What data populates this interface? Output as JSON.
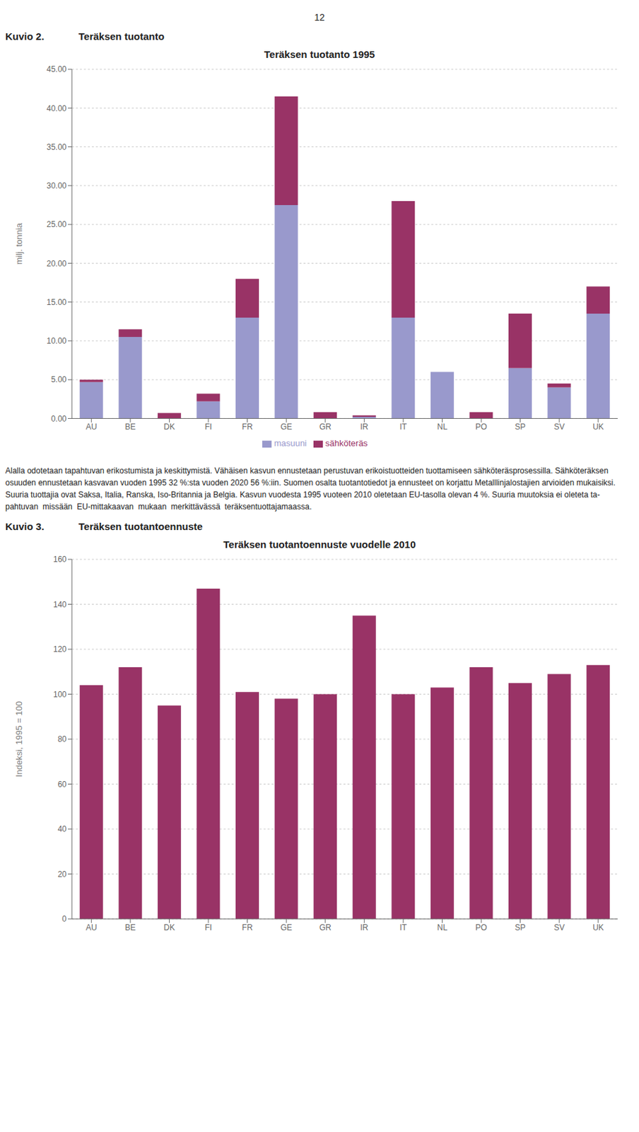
{
  "page_number": "12",
  "text": [
    "Alalla odotetaan tapahtuvan erikostumista ja keskittymistä. Vähäisen kasvun ennustetaan perustuvan erikoistuotteiden tuottamiseen sähköteräsprosessilla. Sähköteräksen",
    "osuuden ennustetaan kasvavan vuoden 1995 32 %:sta vuoden 2020 56 %:iin. Suomen osalta tuotantotiedot ja ennusteet on korjattu Metalllinjalostajien arvioiden mukaisiksi.",
    "Suuria tuottajia ovat Saksa, Italia, Ranska, Iso-Britannia ja Belgia. Kasvun vuodesta 1995 vuoteen 2010 oletetaan EU-tasolla olevan 4 %. Suuria muutoksia ei oleteta ta-",
    "pahtuvan  missään  EU-mittakaavan  mukaan  merkittävässä  teräksentuottajamaassa."
  ],
  "chart_data": [
    {
      "type": "bar",
      "annotations": [
        "Kuvio 2.",
        "Teräksen tuotanto"
      ],
      "title": "Teräksen tuotanto 1995",
      "y_label": "milj. tonnia",
      "categories": [
        "AU",
        "BE",
        "DK",
        "FI",
        "FR",
        "GE",
        "GR",
        "IR",
        "IT",
        "NL",
        "PO",
        "SP",
        "SV",
        "UK"
      ],
      "series": [
        {
          "name": "masuuni",
          "color": "#9999CC",
          "values": [
            4.7,
            10.5,
            0.0,
            2.2,
            13.0,
            27.5,
            0.0,
            0.2,
            13.0,
            6.0,
            0.0,
            6.5,
            4.0,
            13.5
          ]
        },
        {
          "name": "sähköteräs",
          "color": "#993366",
          "values": [
            0.3,
            1.0,
            0.7,
            1.0,
            5.0,
            14.0,
            0.8,
            0.2,
            15.0,
            0.0,
            0.8,
            7.0,
            0.5,
            3.5
          ]
        }
      ],
      "stacked": true,
      "ylim": [
        0,
        45
      ],
      "yticks": [
        {
          "value": 0,
          "label": "0.00"
        },
        {
          "value": 5,
          "label": "5.00"
        },
        {
          "value": 10,
          "label": "10.00"
        },
        {
          "value": 15,
          "label": "15.00"
        },
        {
          "value": 20,
          "label": "20.00"
        },
        {
          "value": 25,
          "label": "25.00"
        },
        {
          "value": 30,
          "label": "30.00"
        },
        {
          "value": 35,
          "label": "35.00"
        },
        {
          "value": 40,
          "label": "40.00"
        },
        {
          "value": 45,
          "label": "45.00"
        }
      ],
      "grid": true,
      "legend": "bottom"
    },
    {
      "type": "bar",
      "annotations": [
        "Kuvio 3.",
        "Teräksen tuotantoennuste"
      ],
      "title": "Teräksen tuotantoennuste vuodelle 2010",
      "y_label": "Indeksi, 1995 = 100",
      "categories": [
        "AU",
        "BE",
        "DK",
        "FI",
        "FR",
        "GE",
        "GR",
        "IR",
        "IT",
        "NL",
        "PO",
        "SP",
        "SV",
        "UK"
      ],
      "values": [
        104,
        112,
        95,
        147,
        101,
        98,
        100,
        135,
        100,
        103,
        112,
        105,
        109,
        113
      ],
      "color": "#993366",
      "ylim": [
        0,
        160
      ],
      "yticks": [
        0,
        20,
        40,
        60,
        80,
        100,
        120,
        140,
        160
      ],
      "grid": true
    }
  ]
}
